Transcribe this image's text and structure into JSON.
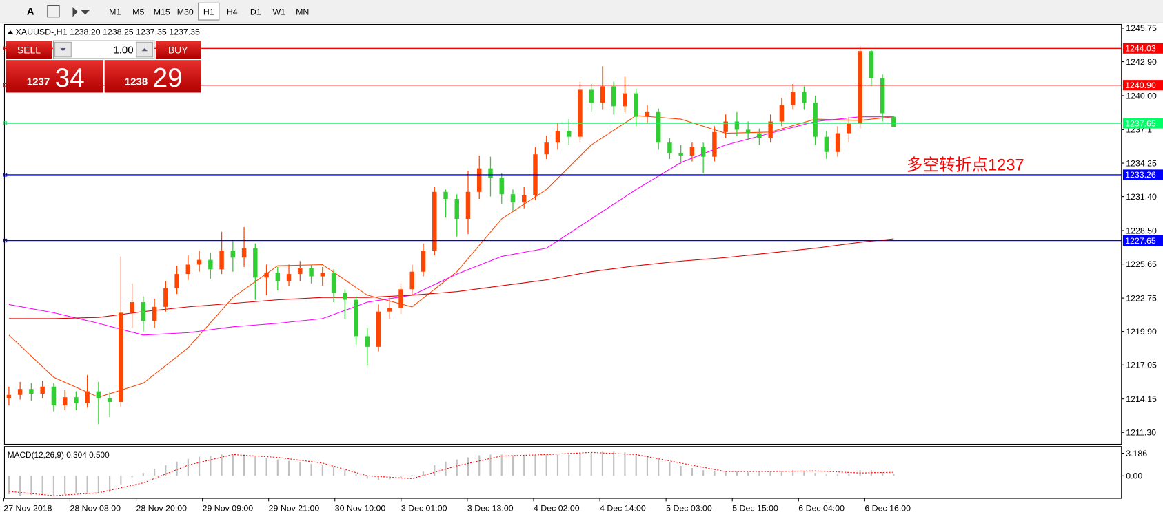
{
  "toolbar": {
    "font_button": "A",
    "timeframes": [
      "M1",
      "M5",
      "M15",
      "M30",
      "H1",
      "H4",
      "D1",
      "W1",
      "MN"
    ],
    "selected": 4
  },
  "trade_panel": {
    "sell": "SELL",
    "lot": "1.00",
    "buy": "BUY",
    "bid_big": "1237",
    "bid_small": "34",
    "ask_big": "1238",
    "ask_small": "29"
  },
  "chart_data": [
    {
      "type": "candlestick",
      "header": "XAUUSD-,H1  1238.20 1238.25 1237.35 1237.35",
      "up_color": "#ff4500",
      "down_color": "#32cd32",
      "ylim": [
        1210.29,
        1246.07
      ],
      "yticks": [
        1245.75,
        {
          "value": 1242.9,
          "label": "1242.90"
        },
        {
          "value": 1240,
          "label": "1240.00"
        },
        1237.1,
        1234.25,
        {
          "value": 1231.4,
          "label": "1231.40"
        },
        {
          "value": 1228.5,
          "label": "1228.50"
        },
        1225.65,
        1222.75,
        {
          "value": 1219.9,
          "label": "1219.90"
        },
        1217.05,
        1214.15,
        {
          "value": 1211.3,
          "label": "1211.30"
        }
      ],
      "xlabels": [
        "27 Nov 2018",
        "28 Nov 08:00",
        "28 Nov 20:00",
        "29 Nov 09:00",
        "29 Nov 21:00",
        "30 Nov 10:00",
        "3 Dec 01:00",
        "3 Dec 13:00",
        "4 Dec 02:00",
        "4 Dec 14:00",
        "5 Dec 03:00",
        "5 Dec 15:00",
        "6 Dec 04:00",
        "6 Dec 16:00"
      ],
      "annotation": "多空转折点1237",
      "levels": [
        {
          "value": 1244.03,
          "color": "#ff0000"
        },
        {
          "value": 1240.9,
          "label": "1240.90",
          "color": "#ff0000"
        },
        {
          "value": 1237.65,
          "color": "#00ff66"
        },
        {
          "value": 1233.26,
          "color": "#0000ff"
        },
        {
          "value": 1227.65,
          "color": "#0000ff"
        }
      ],
      "candles": [
        [
          1214.2,
          1215.2,
          1213.6,
          1214.5
        ],
        [
          1214.5,
          1215.6,
          1214.1,
          1215.0
        ],
        [
          1215.0,
          1215.5,
          1214.0,
          1214.6
        ],
        [
          1214.6,
          1215.7,
          1214.2,
          1215.2
        ],
        [
          1215.2,
          1215.5,
          1213.1,
          1213.6
        ],
        [
          1213.6,
          1214.9,
          1213.2,
          1214.3
        ],
        [
          1214.3,
          1214.8,
          1213.2,
          1213.8
        ],
        [
          1213.8,
          1216.2,
          1213.4,
          1214.8
        ],
        [
          1214.8,
          1215.6,
          1212.0,
          1214.2
        ],
        [
          1214.2,
          1214.7,
          1212.6,
          1213.9
        ],
        [
          1213.9,
          1226.3,
          1213.5,
          1221.5
        ],
        [
          1221.5,
          1224.0,
          1220.2,
          1222.4
        ],
        [
          1222.4,
          1222.9,
          1219.9,
          1220.8
        ],
        [
          1220.8,
          1222.7,
          1220.2,
          1222.0
        ],
        [
          1222.0,
          1224.2,
          1221.6,
          1223.6
        ],
        [
          1223.6,
          1225.5,
          1223.1,
          1224.8
        ],
        [
          1224.8,
          1226.4,
          1224.3,
          1225.6
        ],
        [
          1225.6,
          1226.8,
          1225.0,
          1226.0
        ],
        [
          1226.0,
          1226.6,
          1224.4,
          1225.2
        ],
        [
          1225.2,
          1228.4,
          1224.8,
          1226.8
        ],
        [
          1226.8,
          1227.6,
          1225.0,
          1226.2
        ],
        [
          1226.2,
          1228.8,
          1225.4,
          1227.0
        ],
        [
          1227.0,
          1227.4,
          1222.6,
          1224.5
        ],
        [
          1224.5,
          1225.6,
          1223.0,
          1224.9
        ],
        [
          1224.9,
          1225.4,
          1223.4,
          1224.2
        ],
        [
          1224.2,
          1225.6,
          1223.8,
          1224.8
        ],
        [
          1224.8,
          1225.9,
          1224.2,
          1225.3
        ],
        [
          1225.3,
          1225.6,
          1224.0,
          1224.6
        ],
        [
          1224.6,
          1225.4,
          1223.8,
          1224.9
        ],
        [
          1224.9,
          1225.2,
          1222.4,
          1223.2
        ],
        [
          1223.2,
          1223.5,
          1221.0,
          1222.6
        ],
        [
          1222.6,
          1222.9,
          1218.8,
          1219.5
        ],
        [
          1219.5,
          1220.2,
          1217.0,
          1218.6
        ],
        [
          1218.6,
          1222.2,
          1218.2,
          1221.6
        ],
        [
          1221.6,
          1222.8,
          1221.0,
          1221.9
        ],
        [
          1221.9,
          1224.0,
          1221.4,
          1223.5
        ],
        [
          1223.5,
          1225.6,
          1223.0,
          1225.0
        ],
        [
          1225.0,
          1227.4,
          1224.6,
          1226.8
        ],
        [
          1226.8,
          1232.2,
          1226.4,
          1231.8
        ],
        [
          1231.8,
          1232.0,
          1229.6,
          1231.2
        ],
        [
          1231.2,
          1231.6,
          1228.0,
          1229.5
        ],
        [
          1229.5,
          1233.6,
          1228.2,
          1231.8
        ],
        [
          1231.8,
          1234.9,
          1231.2,
          1233.8
        ],
        [
          1233.8,
          1234.8,
          1231.4,
          1233.0
        ],
        [
          1233.0,
          1233.4,
          1230.8,
          1231.6
        ],
        [
          1231.6,
          1232.0,
          1230.2,
          1230.9
        ],
        [
          1230.9,
          1232.2,
          1230.4,
          1231.5
        ],
        [
          1231.5,
          1235.6,
          1231.1,
          1235.0
        ],
        [
          1235.0,
          1236.6,
          1234.6,
          1236.0
        ],
        [
          1236.0,
          1237.7,
          1235.4,
          1237.0
        ],
        [
          1237.0,
          1238.0,
          1235.8,
          1236.5
        ],
        [
          1236.5,
          1241.2,
          1236.0,
          1240.5
        ],
        [
          1240.5,
          1241.0,
          1238.6,
          1239.4
        ],
        [
          1239.4,
          1242.5,
          1238.8,
          1240.8
        ],
        [
          1240.8,
          1241.2,
          1238.4,
          1239.1
        ],
        [
          1239.1,
          1241.6,
          1238.6,
          1240.2
        ],
        [
          1240.2,
          1240.6,
          1237.4,
          1238.2
        ],
        [
          1238.2,
          1239.2,
          1237.6,
          1238.6
        ],
        [
          1238.6,
          1238.9,
          1235.4,
          1236.0
        ],
        [
          1236.0,
          1236.4,
          1234.6,
          1235.1
        ],
        [
          1235.1,
          1235.8,
          1234.2,
          1234.9
        ],
        [
          1234.9,
          1236.0,
          1234.4,
          1235.6
        ],
        [
          1235.6,
          1236.0,
          1233.4,
          1234.8
        ],
        [
          1234.8,
          1237.4,
          1234.4,
          1236.9
        ],
        [
          1236.9,
          1238.4,
          1236.4,
          1237.8
        ],
        [
          1237.8,
          1238.6,
          1236.6,
          1237.1
        ],
        [
          1237.1,
          1237.8,
          1236.2,
          1236.8
        ],
        [
          1236.8,
          1237.2,
          1235.8,
          1236.4
        ],
        [
          1236.4,
          1238.4,
          1236.0,
          1237.8
        ],
        [
          1237.8,
          1239.8,
          1237.4,
          1239.2
        ],
        [
          1239.2,
          1241.0,
          1238.8,
          1240.3
        ],
        [
          1240.3,
          1240.8,
          1238.8,
          1239.4
        ],
        [
          1239.4,
          1240.0,
          1235.8,
          1236.5
        ],
        [
          1236.5,
          1237.0,
          1234.6,
          1235.2
        ],
        [
          1235.2,
          1237.4,
          1234.8,
          1236.8
        ],
        [
          1236.8,
          1238.2,
          1236.0,
          1237.6
        ],
        [
          1237.6,
          1244.2,
          1237.2,
          1243.8
        ],
        [
          1243.8,
          1243.9,
          1240.8,
          1241.5
        ],
        [
          1241.5,
          1241.8,
          1237.8,
          1238.5
        ],
        [
          1238.2,
          1238.25,
          1237.35,
          1237.35
        ]
      ],
      "ma": [
        {
          "color": "#ff4500",
          "x": [
            0,
            4,
            8,
            12,
            16,
            20,
            24,
            28,
            32,
            36,
            40,
            44,
            48,
            52,
            56,
            60,
            64,
            68,
            72,
            76,
            79
          ],
          "values": [
            1219.6,
            1216.0,
            1214.3,
            1215.5,
            1218.5,
            1222.8,
            1225.5,
            1225.6,
            1223.0,
            1222.0,
            1225.0,
            1229.5,
            1232.0,
            1235.8,
            1238.3,
            1238.0,
            1236.8,
            1236.9,
            1238.0,
            1237.9,
            1238.2
          ]
        },
        {
          "color": "#ff00ff",
          "x": [
            0,
            4,
            8,
            12,
            16,
            20,
            24,
            28,
            32,
            36,
            40,
            44,
            48,
            52,
            56,
            60,
            64,
            68,
            72,
            76,
            79
          ],
          "values": [
            1222.2,
            1221.5,
            1220.6,
            1219.6,
            1219.8,
            1220.3,
            1220.6,
            1221.0,
            1222.4,
            1223.0,
            1224.8,
            1226.3,
            1227.0,
            1229.5,
            1232.0,
            1234.3,
            1235.8,
            1236.8,
            1237.8,
            1238.2,
            1238.2
          ]
        },
        {
          "color": "#e00000",
          "x": [
            0,
            4,
            8,
            12,
            16,
            20,
            24,
            28,
            32,
            36,
            40,
            44,
            48,
            52,
            56,
            60,
            64,
            68,
            72,
            76,
            79
          ],
          "values": [
            1221.0,
            1221.0,
            1221.1,
            1221.6,
            1222.0,
            1222.3,
            1222.6,
            1222.8,
            1222.8,
            1223.0,
            1223.3,
            1223.8,
            1224.3,
            1225.0,
            1225.5,
            1225.9,
            1226.2,
            1226.6,
            1227.0,
            1227.5,
            1227.8
          ]
        }
      ]
    },
    {
      "type": "macd",
      "label": "MACD(12,26,9) 0.304 0.500",
      "ylim": [
        -3.18,
        4.14
      ],
      "yticks": [
        3.186,
        {
          "value": 0,
          "label": "0.00"
        }
      ],
      "hist_color": "#c0c0c0",
      "signal_color": "#ff0000",
      "histogram": [
        -2.6,
        -2.8,
        -2.7,
        -2.6,
        -2.7,
        -2.6,
        -2.5,
        -2.4,
        -2.4,
        -2.3,
        -1.2,
        -0.2,
        0.4,
        1.0,
        1.5,
        2.0,
        2.4,
        2.7,
        2.8,
        3.0,
        3.0,
        3.0,
        2.8,
        2.5,
        2.3,
        2.1,
        1.9,
        1.7,
        1.5,
        1.2,
        0.8,
        0.2,
        -0.4,
        -0.6,
        -0.5,
        -0.3,
        0.1,
        0.6,
        1.5,
        2.0,
        2.3,
        2.6,
        2.9,
        3.0,
        3.0,
        2.9,
        2.8,
        2.9,
        3.0,
        3.0,
        3.0,
        3.2,
        3.3,
        3.4,
        3.4,
        3.3,
        3.0,
        2.8,
        2.4,
        1.9,
        1.4,
        1.1,
        0.8,
        0.7,
        0.6,
        0.6,
        0.5,
        0.5,
        0.6,
        0.7,
        0.8,
        0.7,
        0.4,
        0.2,
        0.2,
        0.3,
        0.8,
        0.8,
        0.5,
        0.304
      ],
      "signal": {
        "x": [
          0,
          4,
          8,
          12,
          16,
          20,
          24,
          28,
          32,
          36,
          40,
          44,
          48,
          52,
          56,
          60,
          64,
          68,
          72,
          76,
          79
        ],
        "values": [
          -2.2,
          -2.8,
          -2.4,
          -1.0,
          1.5,
          3.0,
          2.6,
          1.8,
          0.0,
          -0.4,
          1.4,
          2.8,
          3.0,
          3.3,
          3.0,
          1.8,
          0.6,
          0.6,
          0.7,
          0.4,
          0.5
        ]
      }
    }
  ]
}
